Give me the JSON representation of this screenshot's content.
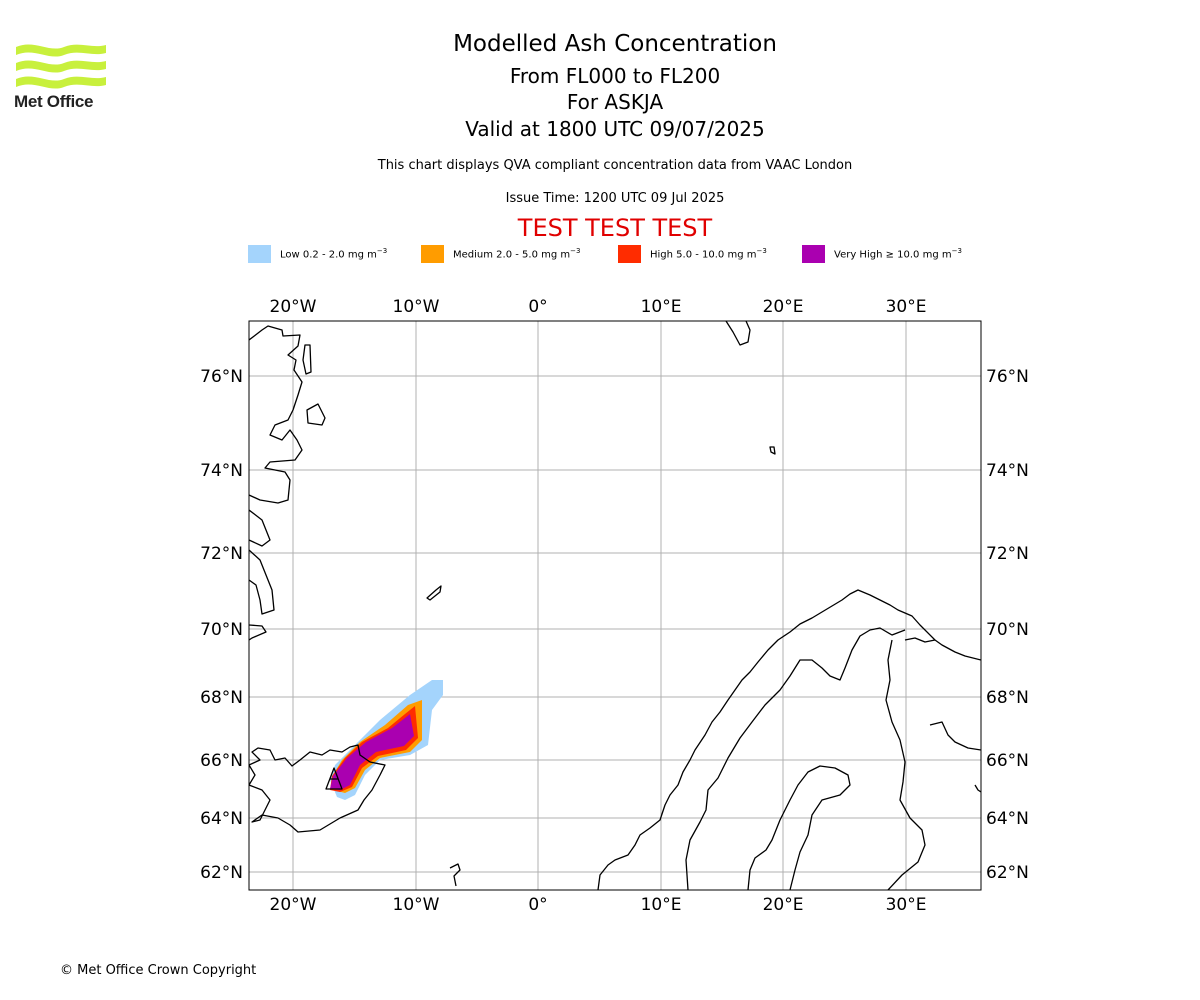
{
  "header": {
    "logo_text": "Met Office",
    "title": "Modelled Ash Concentration",
    "subtitle_levels": "From FL000 to FL200",
    "subtitle_volcano": "For ASKJA",
    "subtitle_valid": "Valid at 1800 UTC 09/07/2025",
    "description": "This chart displays QVA compliant concentration data from VAAC London",
    "issue_time": "Issue Time: 1200 UTC 09 Jul 2025",
    "test_banner": "TEST TEST TEST"
  },
  "legend": [
    {
      "label": "Low 0.2 - 2.0 mg m",
      "color": "#a4d4fc"
    },
    {
      "label": "Medium 2.0 - 5.0 mg m",
      "color": "#ff9c00"
    },
    {
      "label": "High 5.0 - 10.0 mg m",
      "color": "#ff2c00"
    },
    {
      "label": "Very High ≥ 10.0 mg m",
      "color": "#aa00b0"
    }
  ],
  "legend_unit_exp": "−3",
  "map": {
    "lon_ticks": [
      "20°W",
      "10°W",
      "0°",
      "10°E",
      "20°E",
      "30°E"
    ],
    "lat_ticks": [
      "76°N",
      "74°N",
      "72°N",
      "70°N",
      "68°N",
      "66°N",
      "64°N",
      "62°N"
    ],
    "grid": true,
    "coastline_color": "#000000"
  },
  "footer": {
    "copyright": "© Met Office Crown Copyright"
  }
}
